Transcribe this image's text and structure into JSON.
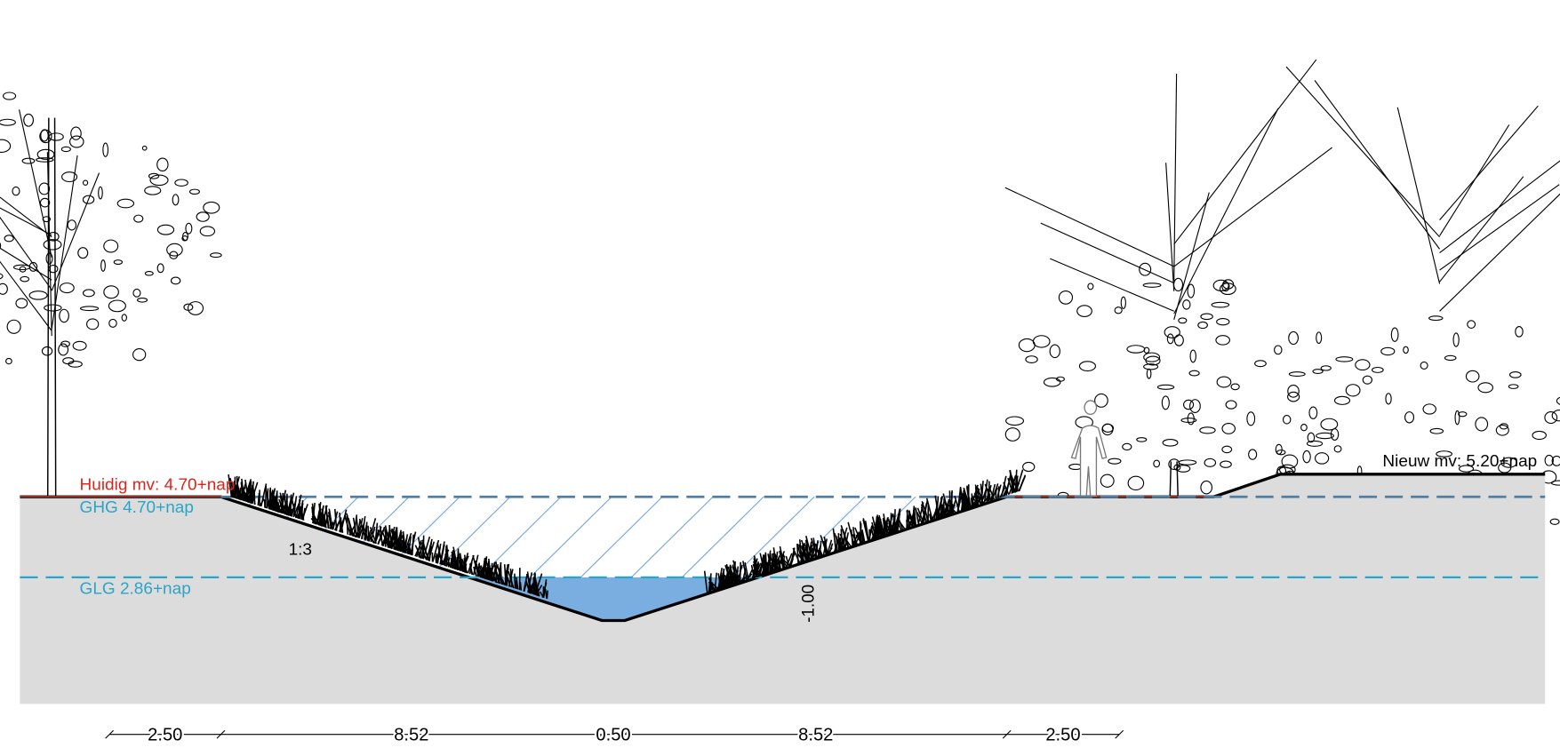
{
  "labels": {
    "current_ground": "Huidig mv: 4.70+nap",
    "ghg": "GHG 4.70+nap",
    "glg": "GLG 2.86+nap",
    "slope": "1:3",
    "depth": "-1.00",
    "new_ground": "Nieuw mv: 5.20+nap"
  },
  "dimensions": [
    "2.50",
    "8.52",
    "0.50",
    "8.52",
    "2.50"
  ]
}
